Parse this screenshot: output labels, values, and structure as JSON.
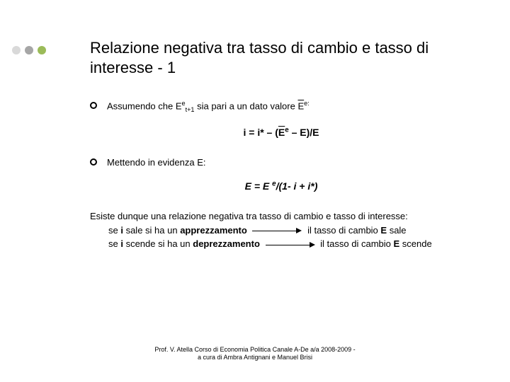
{
  "decor": {
    "dot_colors": [
      "#d9d9d9",
      "#a6a6a6",
      "#9bbb59"
    ]
  },
  "title": "Relazione negativa tra tasso di cambio e tasso di interesse - 1",
  "bullet1_pre": "Assumendo che E",
  "bullet1_sup1": "e",
  "bullet1_sub1": "t+1",
  "bullet1_mid": " sia pari a un dato valore ",
  "bullet1_over": "E",
  "bullet1_sup2": "e:",
  "eq1_a": "i = i* – (",
  "eq1_over": "E",
  "eq1_sup": "e",
  "eq1_b": " – E)/E",
  "bullet2": "Mettendo in evidenza E:",
  "eq2_a": "E = E ",
  "eq2_sup": "e",
  "eq2_b": "/(1- i + i*)",
  "para1": "Esiste dunque una relazione negativa tra tasso di cambio e tasso di interesse:",
  "line2a_pre": "se ",
  "line2a_b1": "i",
  "line2a_mid": " sale si ha un ",
  "line2a_b2": "apprezzamento",
  "line2b_pre": "il tasso di cambio ",
  "line2b_b": "E",
  "line2b_post": " sale",
  "line3a_pre": "se ",
  "line3a_b1": "i",
  "line3a_mid": " scende si ha un ",
  "line3a_b2": "deprezzamento",
  "line3b_pre": "il tasso di cambio ",
  "line3b_b": "E",
  "line3b_post": " scende",
  "footer1": "Prof. V. Atella Corso di Economia Politica Canale A-De a/a 2008-2009 -",
  "footer2": "a cura di Ambra Antignani e Manuel Brisi"
}
